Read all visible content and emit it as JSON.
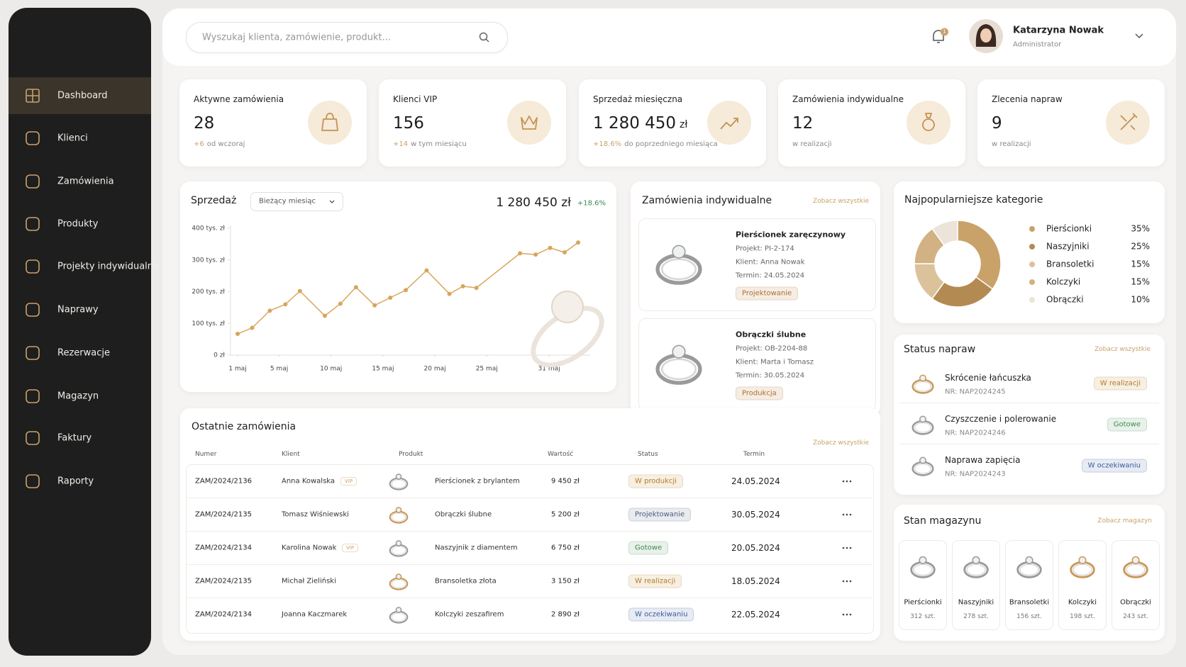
{
  "nav": [
    "Dashboard",
    "Klienci",
    "Zamówienia",
    "Produkty",
    "Projekty indywidualne",
    "Naprawy",
    "Rezerwacje",
    "Magazyn",
    "Faktury",
    "Raporty"
  ],
  "search_placeholder": "Wyszukaj klienta, zamówienie, produkt...",
  "notification_count": "1",
  "user": {
    "name": "Katarzyna Nowak",
    "role": "Administrator"
  },
  "kpis": [
    {
      "label": "Aktywne zamówienia",
      "value": "28",
      "delta": "+6",
      "note": "od wczoraj"
    },
    {
      "label": "Klienci VIP",
      "value": "156",
      "delta": "+14",
      "note": "w tym miesiącu"
    },
    {
      "label": "Sprzedaż miesięczna",
      "value": "1 280 450",
      "unit": "zł",
      "delta": "+18.6%",
      "note": "do poprzedniego miesiąca"
    },
    {
      "label": "Zamówienia indywidualne",
      "value": "12",
      "note": "w realizacji"
    },
    {
      "label": "Zlecenia napraw",
      "value": "9",
      "note": "w realizacji"
    }
  ],
  "sales": {
    "period": "Bieżący miesiąc",
    "total": "1 280 450 zł",
    "change": "+18.6%"
  },
  "chart_data": [
    {
      "type": "line",
      "title": "Sprzedaż",
      "color": "#d9a55c",
      "x": [
        1,
        2.4,
        4.1,
        5.6,
        7,
        9.4,
        10.9,
        12.4,
        14.2,
        15.7,
        17.2,
        19.2,
        21.4,
        22.7,
        24,
        28.2,
        29.7,
        31.1,
        32.5,
        33.8
      ],
      "values": [
        67000,
        86000,
        140000,
        160000,
        202000,
        124000,
        162000,
        214000,
        157000,
        181000,
        205000,
        267000,
        193000,
        217000,
        212000,
        321000,
        317000,
        338000,
        324000,
        355000
      ],
      "xlim": [
        1,
        34
      ],
      "xticks": [
        {
          "value": 1,
          "label": "1 maj"
        },
        {
          "value": 5,
          "label": "5 maj"
        },
        {
          "value": 10,
          "label": "10 maj"
        },
        {
          "value": 15,
          "label": "15 maj"
        },
        {
          "value": 20,
          "label": "20 maj"
        },
        {
          "value": 25,
          "label": "25 maj"
        },
        {
          "value": 31,
          "label": "31 maj"
        }
      ],
      "ylim": [
        0,
        400000
      ],
      "yticks": [
        {
          "value": 0,
          "label": "0 zł"
        },
        {
          "value": 100000,
          "label": "100 tys. zł"
        },
        {
          "value": 200000,
          "label": "200 tys. zł"
        },
        {
          "value": 300000,
          "label": "300 tys. zł"
        },
        {
          "value": 400000,
          "label": "400 tys. zł"
        }
      ],
      "grid": false
    },
    {
      "type": "donut",
      "title": "Najpopularniejsze kategorie",
      "categories": [
        "Pierścionki",
        "Naszyjniki",
        "Bransoletki",
        "Kolczyki",
        "Obrączki"
      ],
      "values": [
        35,
        25,
        15,
        15,
        10
      ],
      "value_labels": [
        "35%",
        "25%",
        "15%",
        "15%",
        "10%"
      ],
      "colors": [
        "#c9a26a",
        "#b38a52",
        "#dcc29b",
        "#d2b183",
        "#ece4d8"
      ]
    }
  ],
  "custom_orders": {
    "title": "Zamówienia indywidualne",
    "link": "Zobacz wszystkie",
    "items": [
      {
        "name": "Pierścionek zaręczynowy",
        "project": "Projekt: PI-2-174",
        "client": "Klient: Anna Nowak",
        "date": "Termin: 24.05.2024",
        "status": "Projektowanie",
        "color": "#b06f2a"
      },
      {
        "name": "Obrączki ślubne",
        "project": "Projekt: OB-2204-88",
        "client": "Klient: Marta i Tomasz",
        "date": "Termin: 30.05.2024",
        "status": "Produkcja",
        "color": "#b06f2a"
      }
    ]
  },
  "repairs": {
    "title": "Status napraw",
    "link": "Zobacz wszystkie",
    "items": [
      {
        "name": "Skrócenie łańcuszka",
        "number": "NR: NAP2024245",
        "status": "W realizacji",
        "color": "#b7791f"
      },
      {
        "name": "Czyszczenie i polerowanie",
        "number": "NR: NAP2024246",
        "status": "Gotowe",
        "color": "#3f8a4f"
      },
      {
        "name": "Naprawa zapięcia",
        "number": "NR: NAP2024243",
        "status": "W oczekiwaniu",
        "color": "#3b5b9a"
      }
    ]
  },
  "inventory": {
    "title": "Stan magazynu",
    "link": "Zobacz magazyn",
    "items": [
      {
        "name": "Pierścionki",
        "count": "312 szt."
      },
      {
        "name": "Naszyjniki",
        "count": "278 szt."
      },
      {
        "name": "Bransoletki",
        "count": "156 szt."
      },
      {
        "name": "Kolczyki",
        "count": "198 szt."
      },
      {
        "name": "Obrączki",
        "count": "243 szt."
      }
    ]
  },
  "orders": {
    "title": "Ostatnie zamówienia",
    "link": "Zobacz wszystkie",
    "columns": [
      "Numer",
      "Klient",
      "Produkt",
      "Wartość",
      "Status",
      "Termin"
    ],
    "rows": [
      {
        "number": "ZAM/2024/2136",
        "client": "Anna Kowalska",
        "vip": "VIP",
        "product": "Pierścionek z brylantem",
        "value": "9 450 zł",
        "status": "W produkcji",
        "color": "#b7791f",
        "date": "24.05.2024"
      },
      {
        "number": "ZAM/2024/2135",
        "client": "Tomasz Wiśniewski",
        "product": "Obrączki ślubne",
        "value": "5 200 zł",
        "status": "Projektowanie",
        "color": "#4a5d7e",
        "date": "30.05.2024"
      },
      {
        "number": "ZAM/2024/2134",
        "client": "Karolina Nowak",
        "vip": "VIP",
        "product": "Naszyjnik z diamentem",
        "value": "6 750 zł",
        "status": "Gotowe",
        "color": "#3f8a4f",
        "date": "20.05.2024"
      },
      {
        "number": "ZAM/2024/2135",
        "client": "Michał Zieliński",
        "product": "Bransoletka złota",
        "value": "3 150 zł",
        "status": "W realizacji",
        "color": "#b7791f",
        "date": "18.05.2024"
      },
      {
        "number": "ZAM/2024/2134",
        "client": "Joanna Kaczmarek",
        "product": "Kolczyki zeszafirem",
        "value": "2 890 zł",
        "status": "W oczekiwaniu",
        "color": "#3b5b9a",
        "date": "22.05.2024"
      }
    ]
  }
}
